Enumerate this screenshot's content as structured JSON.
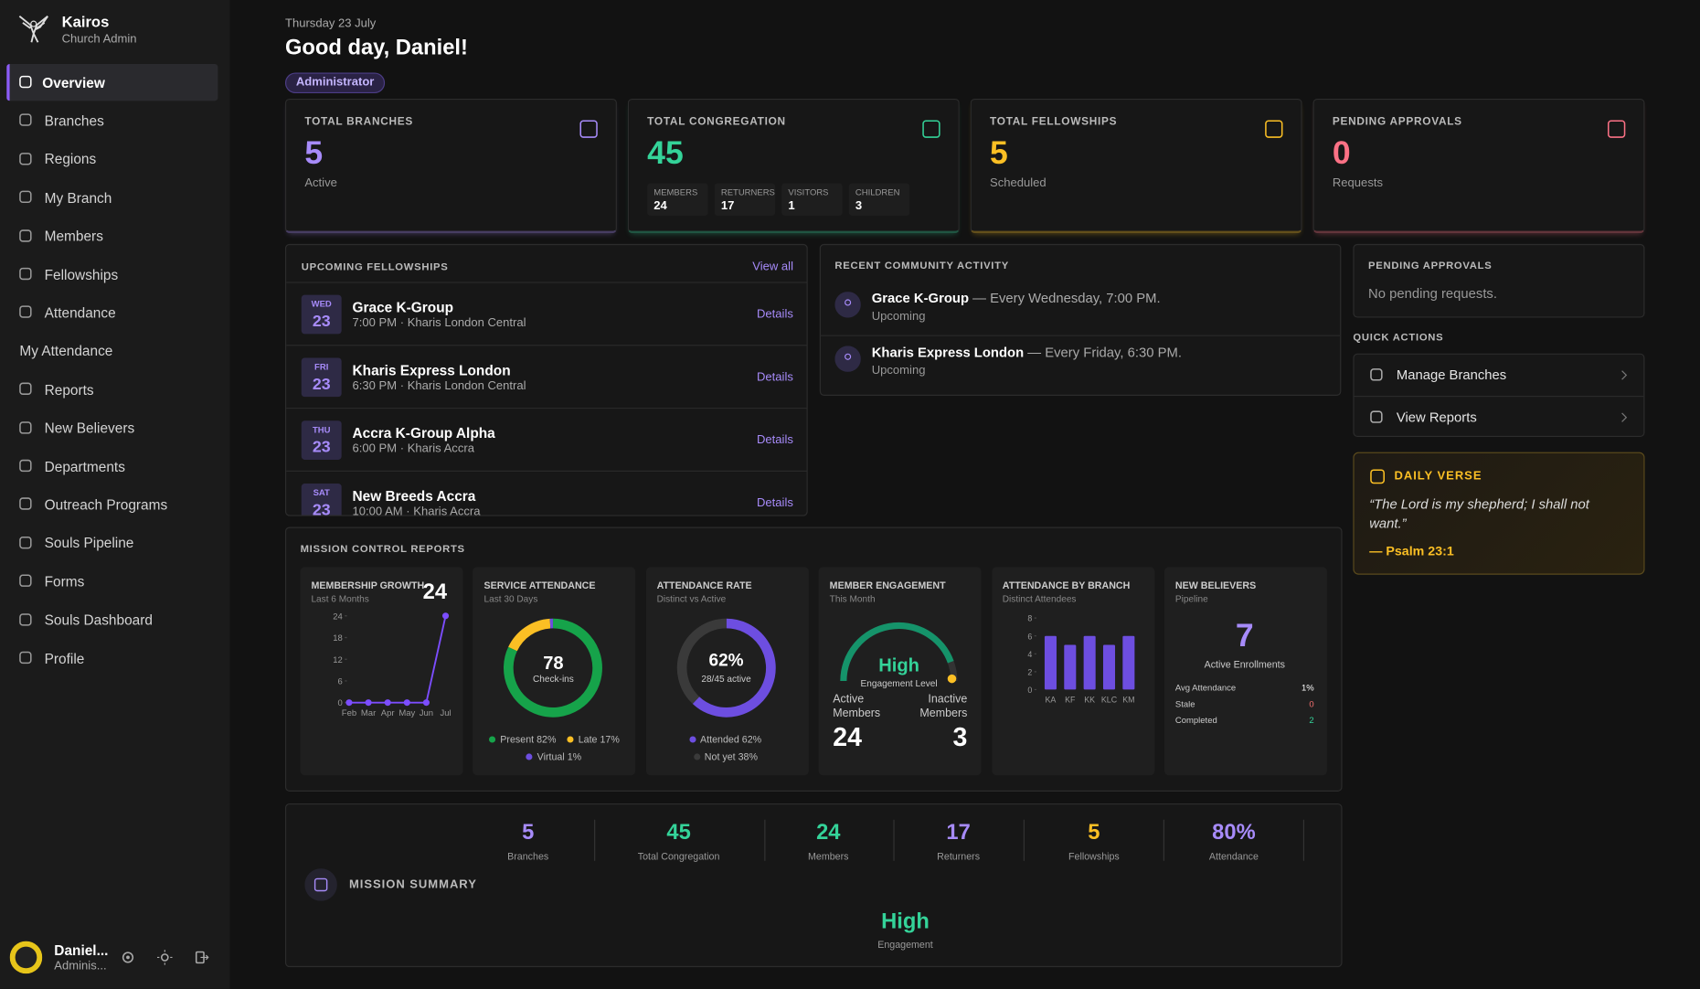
{
  "sidebar": {
    "app_name": "Kairos",
    "app_role": "Church Admin",
    "nav": [
      "Overview",
      "Branches",
      "Regions",
      "My Branch",
      "Members",
      "Fellowships",
      "Attendance",
      "My Attendance",
      "Reports",
      "New Believers",
      "Departments",
      "Outreach Programs",
      "Souls Pipeline",
      "Forms",
      "Souls Dashboard",
      "Profile"
    ],
    "user": {
      "name": "Daniel...",
      "role": "Adminis..."
    }
  },
  "header": {
    "date": "Thursday 23 July",
    "greeting": "Good day, Daniel!",
    "badge": "Administrator"
  },
  "stats": [
    {
      "label": "TOTAL BRANCHES",
      "value": 5,
      "sub": "Active",
      "color": "#a78bfa"
    },
    {
      "label": "TOTAL CONGREGATION",
      "value": 45,
      "color": "#34d399",
      "breakdown": [
        {
          "label": "MEMBERS",
          "value": 24
        },
        {
          "label": "RETURNERS",
          "value": 17
        },
        {
          "label": "VISITORS",
          "value": 1
        },
        {
          "label": "CHILDREN",
          "value": 3
        }
      ]
    },
    {
      "label": "TOTAL FELLOWSHIPS",
      "value": 5,
      "sub": "Scheduled",
      "color": "#fbbf24"
    },
    {
      "label": "PENDING APPROVALS",
      "value": 0,
      "sub": "Requests",
      "color": "#fb7185"
    }
  ],
  "upcoming": {
    "title": "UPCOMING FELLOWSHIPS",
    "link": "View all",
    "items": [
      {
        "day": "WED",
        "date": "23",
        "name": "Grace K-Group",
        "detail": "7:00 PM · Kharis London Central",
        "action": "Details"
      },
      {
        "day": "FRI",
        "date": "23",
        "name": "Kharis Express London",
        "detail": "6:30 PM · Kharis London Central",
        "action": "Details"
      },
      {
        "day": "THU",
        "date": "23",
        "name": "Accra K-Group Alpha",
        "detail": "6:00 PM · Kharis Accra",
        "action": "Details"
      },
      {
        "day": "SAT",
        "date": "23",
        "name": "New Breeds Accra",
        "detail": "10:00 AM · Kharis Accra",
        "action": "Details"
      }
    ]
  },
  "activity": {
    "title": "RECENT COMMUNITY ACTIVITY",
    "items": [
      {
        "name": "Grace K-Group",
        "text": "— Every Wednesday, 7:00 PM.",
        "status": "Upcoming"
      },
      {
        "name": "Kharis Express London",
        "text": "— Every Friday, 6:30 PM.",
        "status": "Upcoming"
      }
    ]
  },
  "pending": {
    "title": "PENDING APPROVALS",
    "text": "No pending requests."
  },
  "quick_actions": {
    "title": "QUICK ACTIONS",
    "items": [
      "Manage Branches",
      "View Reports"
    ]
  },
  "verse": {
    "title": "DAILY VERSE",
    "text": "“The Lord is my shepherd; I shall not want.”",
    "reference": "— Psalm 23:1"
  },
  "reports": {
    "title": "MISSION CONTROL REPORTS",
    "membership_growth": {
      "title": "MEMBERSHIP GROWTH",
      "subtitle": "Last 6 Months",
      "total": 24,
      "categories": [
        "Feb",
        "Mar",
        "Apr",
        "May",
        "Jun",
        "Jul"
      ],
      "values": [
        0,
        0,
        0,
        0,
        0,
        24
      ],
      "ylim": [
        0,
        24
      ],
      "yticks": [
        0,
        6,
        12,
        18,
        24
      ],
      "color": "#7c4dff"
    },
    "service_attendance": {
      "title": "SERVICE ATTENDANCE",
      "subtitle": "Last 30 Days",
      "total": 78,
      "center_label": "Check-ins",
      "names": [
        "Present",
        "Late",
        "Virtual"
      ],
      "values": [
        82,
        17,
        1
      ],
      "value_labels": [
        "82%",
        "17%",
        "1%"
      ],
      "colors": [
        "#16a34a",
        "#fbbf24",
        "#6d4ee0"
      ]
    },
    "attendance_rate": {
      "title": "ATTENDANCE RATE",
      "subtitle": "Distinct vs Active",
      "center_label": "28/45 active",
      "names": [
        "Attended",
        "Not yet"
      ],
      "values": [
        62,
        38
      ],
      "value_labels": [
        "62%",
        "38%"
      ],
      "colors": [
        "#6d4ee0",
        "#3a3a3a"
      ]
    },
    "member_engagement": {
      "title": "MEMBER ENGAGEMENT",
      "subtitle": "This Month",
      "level": "High",
      "level_label": "Engagement Level",
      "active_label": "Active Members",
      "active": 24,
      "inactive_label": "Inactive Members",
      "inactive": 3
    },
    "attendance_by_branch": {
      "title": "ATTENDANCE BY BRANCH",
      "subtitle": "Distinct Attendees",
      "categories": [
        "KA",
        "KF",
        "KK",
        "KLC",
        "KM"
      ],
      "values": [
        6,
        5,
        6,
        5,
        6
      ],
      "ylim": [
        0,
        8
      ],
      "yticks": [
        0,
        2,
        4,
        6,
        8
      ],
      "color": "#6d4ee0"
    },
    "new_believers": {
      "title": "NEW BELIEVERS",
      "subtitle": "Pipeline",
      "value": 7,
      "value_label": "Active Enrollments",
      "rows": [
        {
          "label": "Avg Attendance",
          "value": "1%"
        },
        {
          "label": "Stale",
          "value": 0
        },
        {
          "label": "Completed",
          "value": 2
        }
      ]
    }
  },
  "summary": {
    "title": "MISSION SUMMARY",
    "stats": [
      {
        "value": 5,
        "label": "Branches",
        "color": "#a78bfa"
      },
      {
        "value": 45,
        "label": "Total Congregation",
        "color": "#34d399"
      },
      {
        "value": 24,
        "label": "Members",
        "color": "#34d399"
      },
      {
        "value": 17,
        "label": "Returners",
        "color": "#a78bfa"
      },
      {
        "value": 5,
        "label": "Fellowships",
        "color": "#fbbf24"
      },
      {
        "value": "80%",
        "label": "Attendance",
        "color": "#a78bfa"
      }
    ],
    "engagement": "High",
    "engagement_label": "Engagement"
  }
}
